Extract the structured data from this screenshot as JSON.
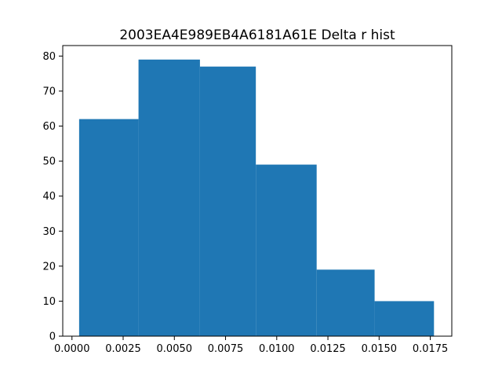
{
  "chart_data": {
    "type": "bar",
    "title": "2003EA4E989EB4A6181A61E Delta r hist",
    "xlabel": "",
    "ylabel": "",
    "bin_edges": [
      0.00035,
      0.00325,
      0.00625,
      0.00898,
      0.01195,
      0.01478,
      0.01768
    ],
    "counts": [
      62,
      79,
      77,
      49,
      19,
      10
    ],
    "xlim": [
      -0.00045,
      0.01855
    ],
    "ylim": [
      0,
      83
    ],
    "xticks": [
      {
        "value": 0.0,
        "label": "0.0000"
      },
      {
        "value": 0.0025,
        "label": "0.0025"
      },
      {
        "value": 0.005,
        "label": "0.0050"
      },
      {
        "value": 0.0075,
        "label": "0.0075"
      },
      {
        "value": 0.01,
        "label": "0.0100"
      },
      {
        "value": 0.0125,
        "label": "0.0125"
      },
      {
        "value": 0.015,
        "label": "0.0150"
      },
      {
        "value": 0.0175,
        "label": "0.0175"
      }
    ],
    "yticks": [
      {
        "value": 0,
        "label": "0"
      },
      {
        "value": 10,
        "label": "10"
      },
      {
        "value": 20,
        "label": "20"
      },
      {
        "value": 30,
        "label": "30"
      },
      {
        "value": 40,
        "label": "40"
      },
      {
        "value": 50,
        "label": "50"
      },
      {
        "value": 60,
        "label": "60"
      },
      {
        "value": 70,
        "label": "70"
      },
      {
        "value": 80,
        "label": "80"
      }
    ],
    "bar_color": "#1f77b4",
    "grid": false,
    "legend": "none"
  }
}
